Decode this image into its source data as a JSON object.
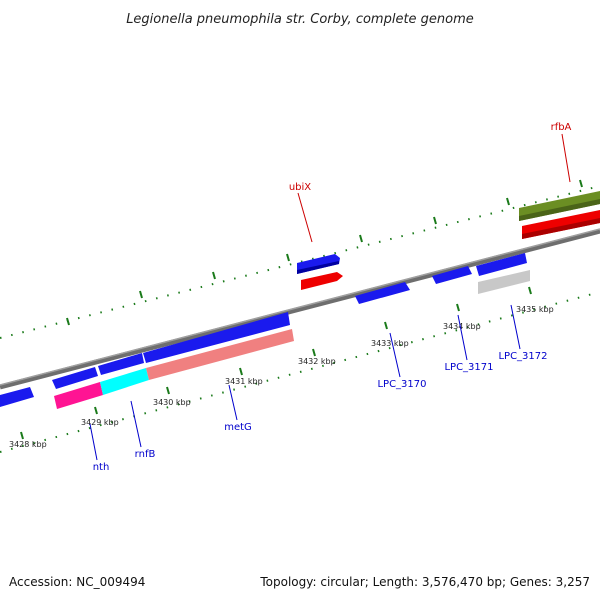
{
  "title": "Legionella pneumophila str. Corby, complete genome",
  "footer": {
    "accession": "Accession: NC_009494",
    "summary": "Topology: circular; Length: 3,576,470 bp; Genes: 3,257"
  },
  "colors": {
    "backbone": "#808080",
    "gene_blue": "#1a1aee",
    "gene_red": "#ee0000",
    "gene_olive": "#6b8e23",
    "gene_pink": "#ff1493",
    "gene_cyan": "#00ffff",
    "gene_salmon": "#f08080",
    "gene_grey": "#c8c8c8",
    "tick": "#1a7a1a",
    "label_red": "#cc0000",
    "label_blue": "#0000cc"
  },
  "ticks": [
    {
      "label": "3428 kbp"
    },
    {
      "label": "3429 kbp"
    },
    {
      "label": "3430 kbp"
    },
    {
      "label": "3431 kbp"
    },
    {
      "label": "3432 kbp"
    },
    {
      "label": "3433 kbp"
    },
    {
      "label": "3434 kbp"
    },
    {
      "label": "3435 kbp"
    }
  ],
  "gene_labels": [
    {
      "text": "rfbA",
      "color": "red"
    },
    {
      "text": "ubiX",
      "color": "red"
    },
    {
      "text": "nth",
      "color": "blue"
    },
    {
      "text": "rnfB",
      "color": "blue"
    },
    {
      "text": "metG",
      "color": "blue"
    },
    {
      "text": "LPC_3170",
      "color": "blue"
    },
    {
      "text": "LPC_3171",
      "color": "blue"
    },
    {
      "text": "LPC_3172",
      "color": "blue"
    }
  ]
}
